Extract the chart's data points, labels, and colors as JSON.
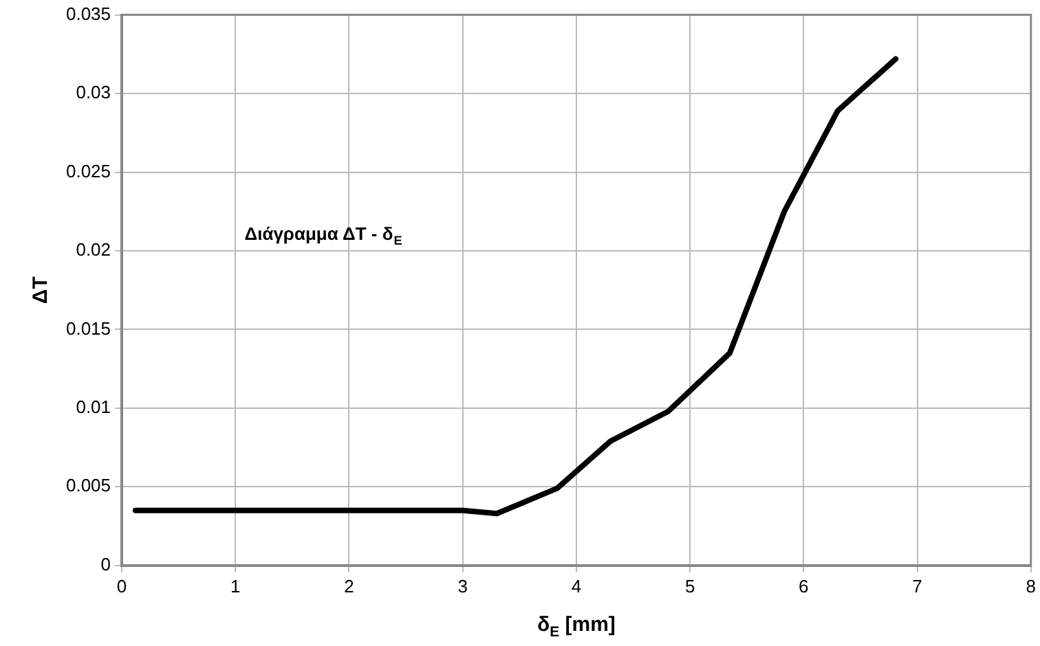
{
  "chart_data": {
    "type": "line",
    "xlabel": "δ$_{E}$ [mm]",
    "ylabel": "ΔT",
    "annotations": [
      "Διάγραμμα ΔT - δ$_{E}$"
    ],
    "x": [
      0.12,
      3.0,
      3.3,
      3.83,
      4.3,
      4.81,
      5.35,
      5.83,
      6.3,
      6.81
    ],
    "series": [
      {
        "color": "#000000",
        "values": [
          0.0035,
          0.0035,
          0.0033,
          0.0049,
          0.0079,
          0.0098,
          0.0135,
          0.0225,
          0.0289,
          0.0322
        ]
      }
    ],
    "xlim": [
      0,
      8
    ],
    "xticks": [
      0,
      1,
      2,
      3,
      4,
      5,
      6,
      7,
      8
    ],
    "ylim": [
      0,
      0.035
    ],
    "yticks": [
      0,
      0.005,
      0.01,
      0.015,
      0.02,
      0.025,
      0.03,
      0.035
    ],
    "grid": true,
    "legend": false,
    "marker": "none",
    "line_style": "solid"
  }
}
